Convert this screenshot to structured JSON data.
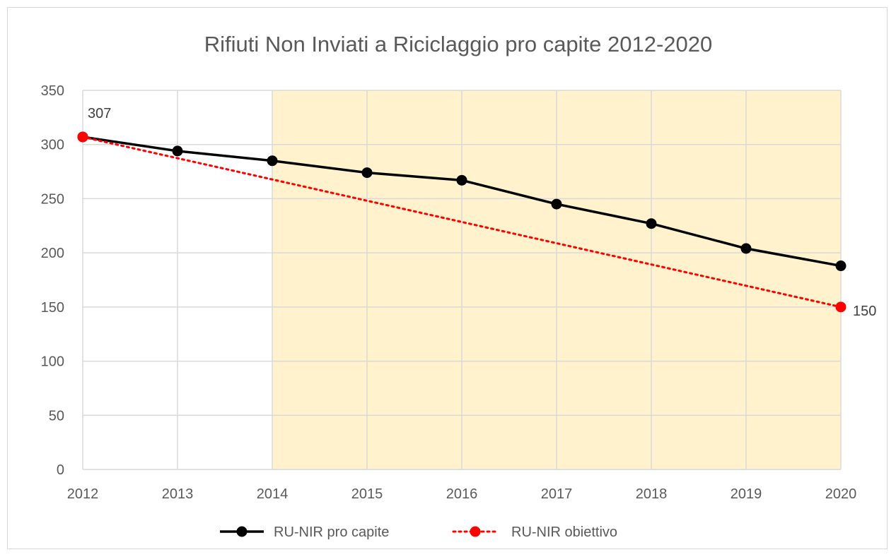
{
  "chart_data": {
    "type": "line",
    "title": "Rifiuti Non Inviati a Riciclaggio pro capite 2012-2020",
    "xlabel": "",
    "ylabel": "",
    "x": [
      "2012",
      "2013",
      "2014",
      "2015",
      "2016",
      "2017",
      "2018",
      "2019",
      "2020"
    ],
    "ylim": [
      0,
      350
    ],
    "yticks": [
      0,
      50,
      100,
      150,
      200,
      250,
      300,
      350
    ],
    "grid": true,
    "legend_position": "bottom",
    "highlight_range": [
      "2014",
      "2020"
    ],
    "series": [
      {
        "name": "RU-NIR pro capite",
        "values": [
          307,
          294,
          285,
          274,
          267,
          245,
          227,
          204,
          188
        ],
        "color": "#000000",
        "style": "solid"
      },
      {
        "name": "RU-NIR obiettivo",
        "values": [
          307,
          null,
          null,
          null,
          null,
          null,
          null,
          null,
          150
        ],
        "color": "#ff0000",
        "style": "dotted"
      }
    ],
    "annotations": [
      {
        "series": 1,
        "index": 0,
        "text": "307"
      },
      {
        "series": 1,
        "index": 8,
        "text": "150"
      }
    ],
    "colors": {
      "highlight": "#fff2cc",
      "grid": "#d9d9d9"
    }
  }
}
